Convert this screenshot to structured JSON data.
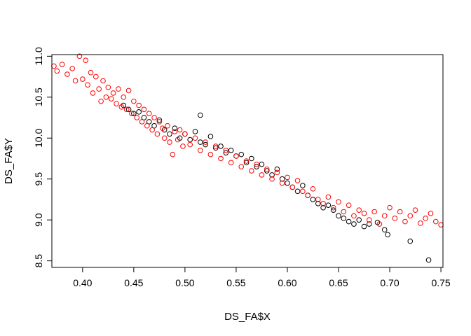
{
  "chart_data": {
    "type": "scatter",
    "title": "",
    "xlabel": "DS_FA$X",
    "ylabel": "DS_FA$Y",
    "xlim": [
      0.37,
      0.752
    ],
    "ylim": [
      8.42,
      11.02
    ],
    "x_ticks": [
      0.4,
      0.45,
      0.5,
      0.55,
      0.6,
      0.65,
      0.7,
      0.75
    ],
    "x_tick_labels": [
      "0.40",
      "0.45",
      "0.50",
      "0.55",
      "0.60",
      "0.65",
      "0.70",
      "0.75"
    ],
    "y_ticks": [
      8.5,
      9.0,
      9.5,
      10.0,
      10.5,
      11.0
    ],
    "y_tick_labels": [
      "8.5",
      "9.0",
      "9.5",
      "10.0",
      "10.5",
      "11.0"
    ],
    "marker": "open-circle",
    "grid": false,
    "legend": "none",
    "series": [
      {
        "color": "#000000",
        "points": [
          [
            0.44,
            10.4
          ],
          [
            0.445,
            10.35
          ],
          [
            0.45,
            10.3
          ],
          [
            0.455,
            10.32
          ],
          [
            0.46,
            10.25
          ],
          [
            0.465,
            10.2
          ],
          [
            0.47,
            10.15
          ],
          [
            0.475,
            10.22
          ],
          [
            0.48,
            10.1
          ],
          [
            0.485,
            10.05
          ],
          [
            0.49,
            10.12
          ],
          [
            0.495,
            10.0
          ],
          [
            0.5,
            10.05
          ],
          [
            0.505,
            9.98
          ],
          [
            0.51,
            10.08
          ],
          [
            0.515,
            10.28
          ],
          [
            0.515,
            9.95
          ],
          [
            0.52,
            9.92
          ],
          [
            0.525,
            10.02
          ],
          [
            0.53,
            9.88
          ],
          [
            0.535,
            9.9
          ],
          [
            0.54,
            9.82
          ],
          [
            0.545,
            9.85
          ],
          [
            0.55,
            9.78
          ],
          [
            0.555,
            9.8
          ],
          [
            0.56,
            9.7
          ],
          [
            0.565,
            9.75
          ],
          [
            0.57,
            9.65
          ],
          [
            0.575,
            9.68
          ],
          [
            0.58,
            9.6
          ],
          [
            0.585,
            9.55
          ],
          [
            0.59,
            9.62
          ],
          [
            0.595,
            9.5
          ],
          [
            0.6,
            9.45
          ],
          [
            0.605,
            9.4
          ],
          [
            0.61,
            9.35
          ],
          [
            0.615,
            9.42
          ],
          [
            0.62,
            9.3
          ],
          [
            0.625,
            9.25
          ],
          [
            0.63,
            9.2
          ],
          [
            0.635,
            9.15
          ],
          [
            0.64,
            9.18
          ],
          [
            0.645,
            9.12
          ],
          [
            0.65,
            9.05
          ],
          [
            0.655,
            9.02
          ],
          [
            0.66,
            8.98
          ],
          [
            0.665,
            8.95
          ],
          [
            0.67,
            9.0
          ],
          [
            0.675,
            8.92
          ],
          [
            0.68,
            8.95
          ],
          [
            0.688,
            8.97
          ],
          [
            0.695,
            8.88
          ],
          [
            0.698,
            8.82
          ],
          [
            0.72,
            8.74
          ],
          [
            0.738,
            8.51
          ]
        ]
      },
      {
        "color": "#ff0000",
        "points": [
          [
            0.372,
            10.88
          ],
          [
            0.375,
            10.82
          ],
          [
            0.38,
            10.9
          ],
          [
            0.385,
            10.78
          ],
          [
            0.39,
            10.85
          ],
          [
            0.393,
            10.7
          ],
          [
            0.397,
            11.0
          ],
          [
            0.4,
            10.72
          ],
          [
            0.403,
            10.95
          ],
          [
            0.405,
            10.65
          ],
          [
            0.408,
            10.8
          ],
          [
            0.41,
            10.55
          ],
          [
            0.413,
            10.75
          ],
          [
            0.416,
            10.6
          ],
          [
            0.418,
            10.45
          ],
          [
            0.42,
            10.7
          ],
          [
            0.423,
            10.5
          ],
          [
            0.425,
            10.62
          ],
          [
            0.428,
            10.48
          ],
          [
            0.43,
            10.55
          ],
          [
            0.433,
            10.42
          ],
          [
            0.435,
            10.6
          ],
          [
            0.438,
            10.38
          ],
          [
            0.44,
            10.5
          ],
          [
            0.443,
            10.35
          ],
          [
            0.445,
            10.58
          ],
          [
            0.448,
            10.3
          ],
          [
            0.45,
            10.45
          ],
          [
            0.453,
            10.25
          ],
          [
            0.455,
            10.4
          ],
          [
            0.458,
            10.2
          ],
          [
            0.46,
            10.35
          ],
          [
            0.463,
            10.15
          ],
          [
            0.465,
            10.3
          ],
          [
            0.468,
            10.1
          ],
          [
            0.47,
            10.25
          ],
          [
            0.473,
            10.05
          ],
          [
            0.475,
            10.2
          ],
          [
            0.478,
            10.12
          ],
          [
            0.48,
            10.0
          ],
          [
            0.483,
            10.15
          ],
          [
            0.485,
            9.95
          ],
          [
            0.488,
            9.8
          ],
          [
            0.49,
            10.08
          ],
          [
            0.493,
            9.98
          ],
          [
            0.495,
            10.1
          ],
          [
            0.498,
            9.9
          ],
          [
            0.5,
            10.05
          ],
          [
            0.505,
            9.92
          ],
          [
            0.51,
            10.0
          ],
          [
            0.515,
            9.85
          ],
          [
            0.52,
            9.95
          ],
          [
            0.525,
            9.8
          ],
          [
            0.53,
            9.9
          ],
          [
            0.535,
            9.75
          ],
          [
            0.54,
            9.85
          ],
          [
            0.545,
            9.7
          ],
          [
            0.55,
            9.78
          ],
          [
            0.555,
            9.65
          ],
          [
            0.56,
            9.72
          ],
          [
            0.565,
            9.6
          ],
          [
            0.57,
            9.68
          ],
          [
            0.575,
            9.55
          ],
          [
            0.58,
            9.62
          ],
          [
            0.585,
            9.5
          ],
          [
            0.59,
            9.58
          ],
          [
            0.595,
            9.45
          ],
          [
            0.6,
            9.52
          ],
          [
            0.605,
            9.4
          ],
          [
            0.61,
            9.48
          ],
          [
            0.615,
            9.35
          ],
          [
            0.62,
            9.3
          ],
          [
            0.625,
            9.38
          ],
          [
            0.63,
            9.25
          ],
          [
            0.635,
            9.2
          ],
          [
            0.64,
            9.28
          ],
          [
            0.645,
            9.15
          ],
          [
            0.65,
            9.22
          ],
          [
            0.655,
            9.1
          ],
          [
            0.66,
            9.18
          ],
          [
            0.665,
            9.05
          ],
          [
            0.67,
            9.12
          ],
          [
            0.675,
            9.08
          ],
          [
            0.68,
            9.0
          ],
          [
            0.685,
            9.1
          ],
          [
            0.69,
            8.95
          ],
          [
            0.695,
            9.05
          ],
          [
            0.7,
            9.15
          ],
          [
            0.705,
            9.02
          ],
          [
            0.71,
            9.1
          ],
          [
            0.715,
            8.98
          ],
          [
            0.72,
            9.05
          ],
          [
            0.725,
            9.12
          ],
          [
            0.73,
            8.96
          ],
          [
            0.735,
            9.02
          ],
          [
            0.74,
            9.08
          ],
          [
            0.745,
            8.98
          ],
          [
            0.75,
            8.94
          ]
        ]
      }
    ]
  }
}
